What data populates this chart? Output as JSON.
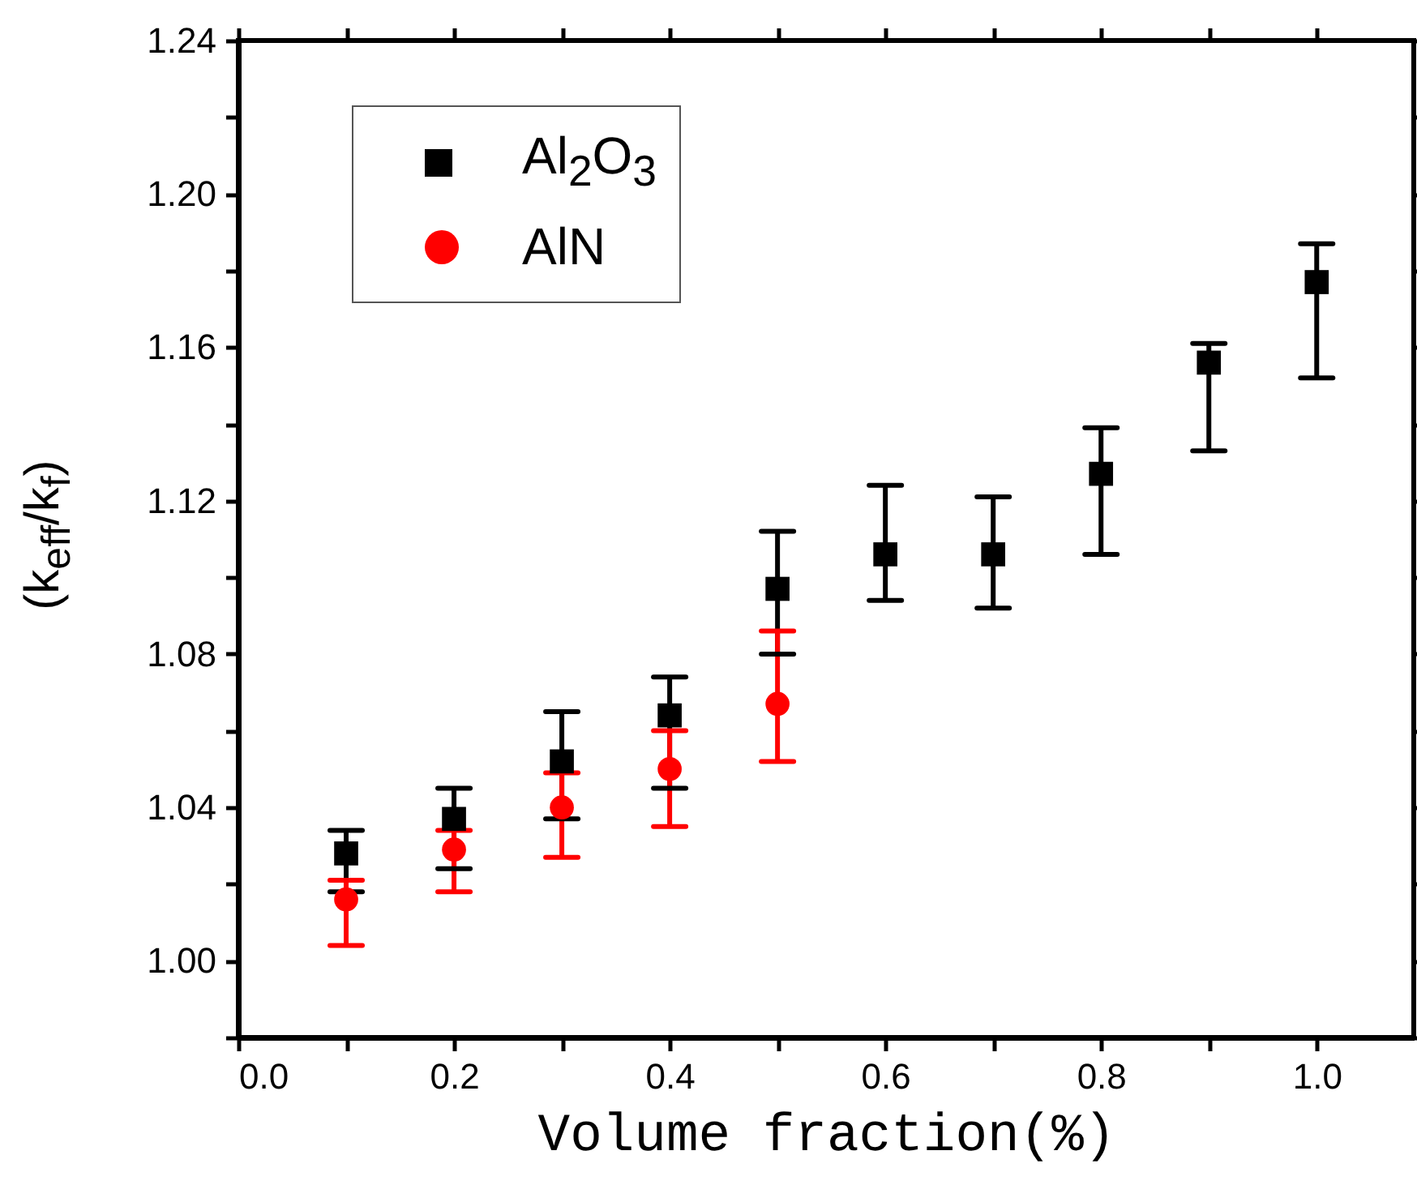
{
  "chart_data": {
    "type": "scatter",
    "xlabel": "Volume fraction(%)",
    "ylabel": "(k$_{eff}$/k$_{f}$)",
    "xlim": [
      0,
      1.09
    ],
    "ylim": [
      0.98,
      1.24
    ],
    "xticks": [
      {
        "value": 0,
        "label": "0.0"
      },
      {
        "value": 0.1,
        "label": null
      },
      {
        "value": 0.2,
        "label": "0.2"
      },
      {
        "value": 0.3,
        "label": null
      },
      {
        "value": 0.4,
        "label": "0.4"
      },
      {
        "value": 0.5,
        "label": null
      },
      {
        "value": 0.6,
        "label": "0.6"
      },
      {
        "value": 0.7,
        "label": null
      },
      {
        "value": 0.8,
        "label": "0.8"
      },
      {
        "value": 0.9,
        "label": null
      },
      {
        "value": 1,
        "label": "1.0"
      }
    ],
    "yticks": [
      {
        "value": 0.98,
        "label": null
      },
      {
        "value": 1,
        "label": "1.00"
      },
      {
        "value": 1.02,
        "label": null
      },
      {
        "value": 1.04,
        "label": "1.04"
      },
      {
        "value": 1.06,
        "label": null
      },
      {
        "value": 1.08,
        "label": "1.08"
      },
      {
        "value": 1.1,
        "label": null
      },
      {
        "value": 1.12,
        "label": "1.12"
      },
      {
        "value": 1.14,
        "label": null
      },
      {
        "value": 1.16,
        "label": "1.16"
      },
      {
        "value": 1.18,
        "label": null
      },
      {
        "value": 1.2,
        "label": "1.20"
      },
      {
        "value": 1.22,
        "label": null
      },
      {
        "value": 1.24,
        "label": "1.24"
      }
    ],
    "grid": false,
    "legend": "top left",
    "series": [
      {
        "name": "Al$_{2}$O$_{3}$",
        "color": "#000000",
        "marker": "square",
        "x": [
          0.1,
          0.2,
          0.3,
          0.4,
          0.5,
          0.6,
          0.7,
          0.8,
          0.9,
          1.0
        ],
        "values": [
          1.028,
          1.037,
          1.052,
          1.064,
          1.097,
          1.106,
          1.106,
          1.127,
          1.156,
          1.177
        ],
        "errors": [
          [
            1.018,
            1.034
          ],
          [
            1.024,
            1.045
          ],
          [
            1.037,
            1.065
          ],
          [
            1.045,
            1.074
          ],
          [
            1.08,
            1.112
          ],
          [
            1.094,
            1.124
          ],
          [
            1.092,
            1.121
          ],
          [
            1.106,
            1.139
          ],
          [
            1.133,
            1.161
          ],
          [
            1.152,
            1.187
          ]
        ]
      },
      {
        "name": "AlN",
        "color": "#ff0000",
        "marker": "circle",
        "x": [
          0.1,
          0.2,
          0.3,
          0.4,
          0.5
        ],
        "values": [
          1.016,
          1.029,
          1.04,
          1.05,
          1.067
        ],
        "errors": [
          [
            1.004,
            1.021
          ],
          [
            1.018,
            1.034
          ],
          [
            1.027,
            1.049
          ],
          [
            1.035,
            1.06
          ],
          [
            1.052,
            1.086
          ]
        ]
      }
    ]
  }
}
